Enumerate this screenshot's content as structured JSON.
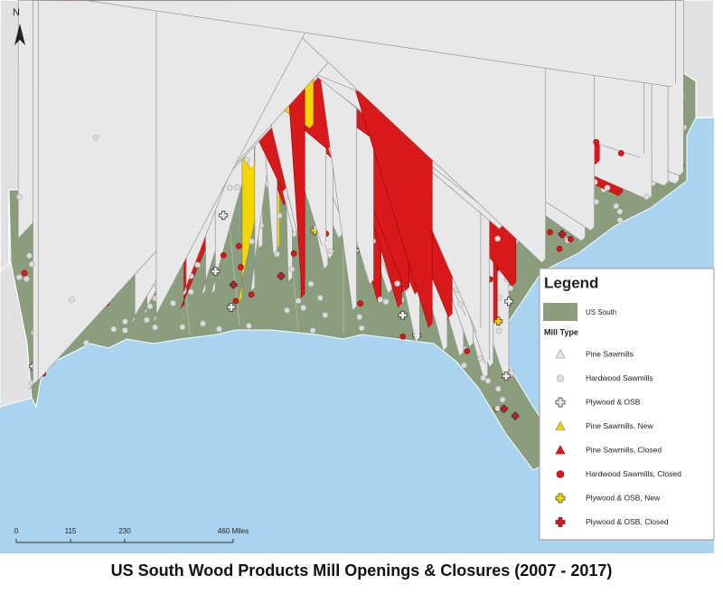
{
  "map": {
    "north_label": "N",
    "legend": {
      "title": "Legend",
      "region": "US South",
      "subtitle": "Mill Type",
      "items": [
        "Pine Sawmills",
        "Hardwood Sawmills",
        "Plywood & OSB",
        "Pine Sawmills, New",
        "Pine Sawmills, Closed",
        "Hardwood Sawmills, Closed",
        "Plywood & OSB, New",
        "Plywood & OSB, Closed"
      ]
    },
    "scale": {
      "ticks": [
        {
          "value": 0,
          "label": "0"
        },
        {
          "value": 115,
          "label": "115"
        },
        {
          "value": 230,
          "label": "230"
        },
        {
          "value": 460,
          "label": "460 Miles"
        }
      ]
    }
  },
  "caption": "US South Wood Products Mill Openings & Closures (2007 - 2017)"
}
